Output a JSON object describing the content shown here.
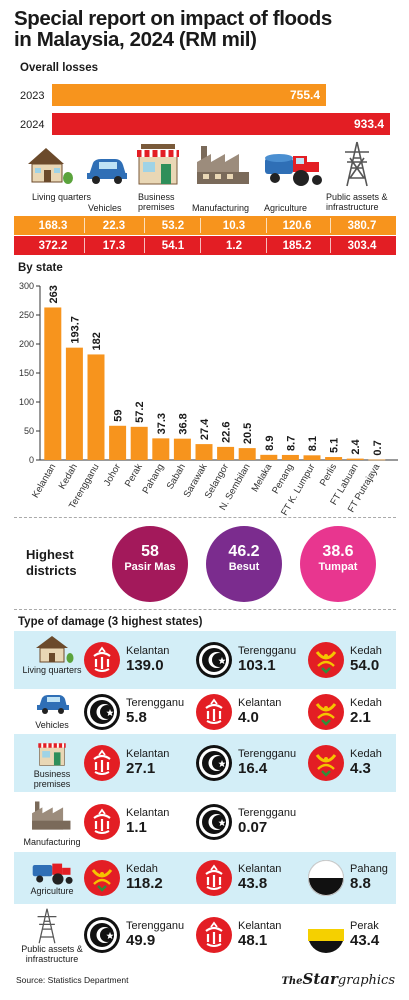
{
  "title_line1": "Special report on impact of floods",
  "title_line2": "in Malaysia, 2024 (RM mil)",
  "overall": {
    "label": "Overall losses",
    "years": [
      {
        "year": "2023",
        "value": 755.4,
        "value_text": "755.4",
        "color": "#f7941d"
      },
      {
        "year": "2024",
        "value": 933.4,
        "value_text": "933.4",
        "color": "#e31e24"
      }
    ]
  },
  "categories": [
    {
      "label": "Living quarters",
      "icon": "house-icon",
      "v2023": "168.3",
      "v2024": "372.2"
    },
    {
      "label": "Vehicles",
      "icon": "car-icon",
      "v2023": "22.3",
      "v2024": "17.3"
    },
    {
      "label": "Business premises",
      "icon": "shop-icon",
      "v2023": "53.2",
      "v2024": "54.1"
    },
    {
      "label": "Manufacturing",
      "icon": "factory-icon",
      "v2023": "10.3",
      "v2024": "1.2"
    },
    {
      "label": "Agriculture",
      "icon": "tractor-icon",
      "v2023": "120.6",
      "v2024": "185.2"
    },
    {
      "label": "Public assets & infrastructure",
      "icon": "pylon-icon",
      "v2023": "380.7",
      "v2024": "303.4"
    }
  ],
  "by_state_label": "By state",
  "chart_data": {
    "type": "bar",
    "categories": [
      "Kelantan",
      "Kedah",
      "Terengganu",
      "Johor",
      "Perak",
      "Pahang",
      "Sabah",
      "Sarawak",
      "Selangor",
      "N. Sembilan",
      "Melaka",
      "Penang",
      "FT K. Lumpur",
      "Perlis",
      "FT Labuan",
      "FT Putrajaya"
    ],
    "values": [
      263,
      193.7,
      182,
      59,
      57.2,
      37.3,
      36.8,
      27.4,
      22.6,
      20.5,
      8.9,
      8.7,
      8.1,
      5.1,
      2.4,
      0.7
    ],
    "value_labels": [
      "263",
      "193.7",
      "182",
      "59",
      "57.2",
      "37.3",
      "36.8",
      "27.4",
      "22.6",
      "20.5",
      "8.9",
      "8.7",
      "8.1",
      "5.1",
      "2.4",
      "0.7"
    ],
    "yticks": [
      "0",
      "50",
      "100",
      "150",
      "200",
      "250",
      "300"
    ],
    "ylim": [
      0,
      300
    ],
    "bar_color": "#f7941d",
    "grid": false,
    "title": "",
    "xlabel": "",
    "ylabel": ""
  },
  "highest_districts": {
    "label_line1": "Highest",
    "label_line2": "districts",
    "items": [
      {
        "value": "58",
        "name": "Pasir Mas",
        "color": "#a3195b"
      },
      {
        "value": "46.2",
        "name": "Besut",
        "color": "#7b2c8e"
      },
      {
        "value": "38.6",
        "name": "Tumpat",
        "color": "#e8368f"
      }
    ]
  },
  "damage": {
    "label": "Type of damage (3 highest states)",
    "rows": [
      {
        "category": "Living quarters",
        "icon": "house-icon",
        "entries": [
          {
            "state": "Kelantan",
            "value": "139.0",
            "flag": "kelantan"
          },
          {
            "state": "Terengganu",
            "value": "103.1",
            "flag": "terengganu"
          },
          {
            "state": "Kedah",
            "value": "54.0",
            "flag": "kedah"
          }
        ]
      },
      {
        "category": "Vehicles",
        "icon": "car-icon",
        "entries": [
          {
            "state": "Terengganu",
            "value": "5.8",
            "flag": "terengganu"
          },
          {
            "state": "Kelantan",
            "value": "4.0",
            "flag": "kelantan"
          },
          {
            "state": "Kedah",
            "value": "2.1",
            "flag": "kedah"
          }
        ]
      },
      {
        "category": "Business premises",
        "icon": "shop-icon",
        "entries": [
          {
            "state": "Kelantan",
            "value": "27.1",
            "flag": "kelantan"
          },
          {
            "state": "Terengganu",
            "value": "16.4",
            "flag": "terengganu"
          },
          {
            "state": "Kedah",
            "value": "4.3",
            "flag": "kedah"
          }
        ]
      },
      {
        "category": "Manufacturing",
        "icon": "factory-icon",
        "entries": [
          {
            "state": "Kelantan",
            "value": "1.1",
            "flag": "kelantan"
          },
          {
            "state": "Terengganu",
            "value": "0.07",
            "flag": "terengganu"
          }
        ]
      },
      {
        "category": "Agriculture",
        "icon": "tractor-icon",
        "entries": [
          {
            "state": "Kedah",
            "value": "118.2",
            "flag": "kedah"
          },
          {
            "state": "Kelantan",
            "value": "43.8",
            "flag": "kelantan"
          },
          {
            "state": "Pahang",
            "value": "8.8",
            "flag": "pahang"
          }
        ]
      },
      {
        "category": "Public assets & infrastructure",
        "icon": "pylon-icon",
        "entries": [
          {
            "state": "Terengganu",
            "value": "49.9",
            "flag": "terengganu"
          },
          {
            "state": "Kelantan",
            "value": "48.1",
            "flag": "kelantan"
          },
          {
            "state": "Perak",
            "value": "43.4",
            "flag": "perak"
          }
        ]
      }
    ]
  },
  "footer": {
    "source": "Source: Statistics Department",
    "brand_the": "The",
    "brand_star": "Star",
    "brand_graphics": "graphics"
  }
}
